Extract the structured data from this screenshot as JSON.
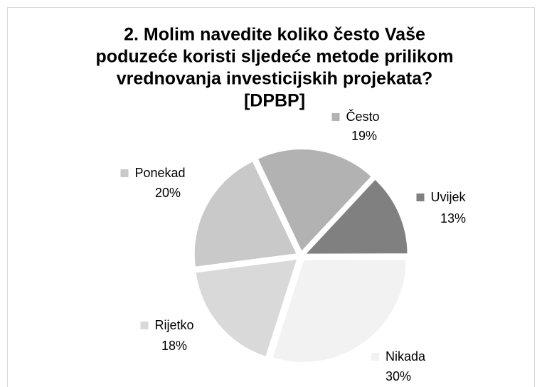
{
  "chart_data": {
    "type": "pie",
    "title": [
      "2. Molim navedite koliko često Vaše",
      "poduzeće koristi sljedeće metode prilikom",
      "vrednovanja investicijskih projekata?",
      "[DPBP]"
    ],
    "categories": [
      "Uvijek",
      "Nikada",
      "Rijetko",
      "Ponekad",
      "Često"
    ],
    "values": [
      13,
      30,
      18,
      20,
      19
    ],
    "value_labels": [
      "13%",
      "30%",
      "18%",
      "20%",
      "19%"
    ],
    "colors": [
      "#808080",
      "#f2f2f2",
      "#d9d9d9",
      "#c9c9c9",
      "#b2b2b2"
    ]
  }
}
